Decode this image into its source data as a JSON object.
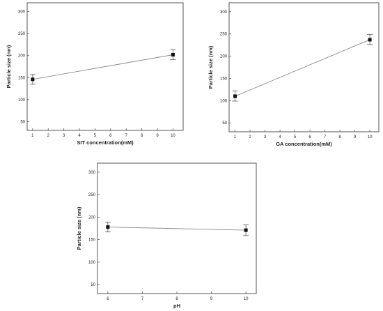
{
  "chart_data": [
    {
      "type": "line",
      "title": "",
      "xlabel": "SIT concentration(mM)",
      "ylabel": "Particle size (nm)",
      "x_ticks": [
        1,
        2,
        3,
        4,
        5,
        6,
        7,
        8,
        9,
        10
      ],
      "y_ticks": [
        50,
        100,
        150,
        200,
        250,
        300
      ],
      "xlim": [
        0.65,
        10.65
      ],
      "ylim": [
        30,
        320
      ],
      "series": [
        {
          "x": [
            1,
            10
          ],
          "y": [
            146,
            202
          ],
          "error_low": [
            135,
            191
          ],
          "error_high": [
            157,
            214
          ]
        }
      ]
    },
    {
      "type": "line",
      "title": "",
      "xlabel": "GA concentration(mM)",
      "ylabel": "Particle size (nm)",
      "x_ticks": [
        1,
        2,
        3,
        4,
        5,
        6,
        7,
        8,
        9,
        10
      ],
      "y_ticks": [
        50,
        100,
        150,
        200,
        250,
        300
      ],
      "xlim": [
        0.6,
        10.6
      ],
      "ylim": [
        30,
        320
      ],
      "series": [
        {
          "x": [
            1,
            10
          ],
          "y": [
            110,
            237
          ],
          "error_low": [
            99,
            226
          ],
          "error_high": [
            122,
            249
          ]
        }
      ]
    },
    {
      "type": "line",
      "title": "",
      "xlabel": "pH",
      "ylabel": "Particle size (nm)",
      "x_ticks": [
        6,
        7,
        8,
        9,
        10
      ],
      "y_ticks": [
        50,
        100,
        150,
        200,
        250,
        300
      ],
      "xlim": [
        5.7,
        10.3
      ],
      "ylim": [
        30,
        320
      ],
      "series": [
        {
          "x": [
            6,
            10
          ],
          "y": [
            178,
            171
          ],
          "error_low": [
            167,
            159
          ],
          "error_high": [
            189,
            183
          ]
        }
      ]
    }
  ]
}
